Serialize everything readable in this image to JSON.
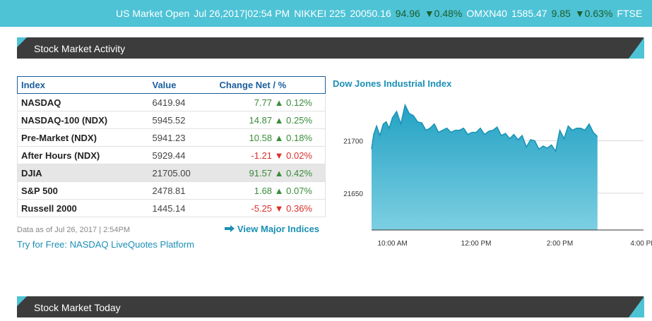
{
  "ticker": {
    "status": "US Market Open",
    "datetime": "Jul 26,2017|02:54 PM",
    "items": [
      {
        "name": "NIKKEI 225",
        "value": "20050.16",
        "change": "94.96",
        "pct": "▼0.48%"
      },
      {
        "name": "OMXN40",
        "value": "1585.47",
        "change": "9.85",
        "pct": "▼0.63%"
      },
      {
        "name": "FTSE",
        "value": "",
        "change": "",
        "pct": ""
      }
    ]
  },
  "section1": {
    "title": "Stock Market Activity"
  },
  "section2": {
    "title": "Stock Market Today"
  },
  "table": {
    "headers": [
      "Index",
      "Value",
      "Change Net / %"
    ],
    "rows": [
      {
        "index": "NASDAQ",
        "value": "6419.94",
        "change": "7.77 ▲ 0.12%",
        "dir": "up"
      },
      {
        "index": "NASDAQ-100 (NDX)",
        "value": "5945.52",
        "change": "14.87 ▲ 0.25%",
        "dir": "up"
      },
      {
        "index": "Pre-Market (NDX)",
        "value": "5941.23",
        "change": "10.58 ▲ 0.18%",
        "dir": "up"
      },
      {
        "index": "After Hours (NDX)",
        "value": "5929.44",
        "change": "-1.21 ▼ 0.02%",
        "dir": "down"
      },
      {
        "index": "DJIA",
        "value": "21705.00",
        "change": "91.57 ▲ 0.42%",
        "dir": "up"
      },
      {
        "index": "S&P 500",
        "value": "2478.81",
        "change": "1.68 ▲ 0.07%",
        "dir": "up"
      },
      {
        "index": "Russell 2000",
        "value": "1445.14",
        "change": "-5.25 ▼ 0.36%",
        "dir": "down"
      }
    ]
  },
  "footer": {
    "as_of": "Data as of Jul 26, 2017 | 2:54PM",
    "try_link": "Try for Free: NASDAQ LiveQuotes Platform",
    "view_link": "View Major Indices",
    "view_icon": "arrow-right-icon"
  },
  "colors": {
    "accent": "#4ec3d6",
    "header_bg": "#3c3c3c",
    "up": "#3a8c3a",
    "down": "#d9302c",
    "link": "#1b8fb5"
  },
  "chart_data": {
    "type": "area",
    "title": "Dow Jones Industrial Index",
    "x_ticks": [
      "10:00 AM",
      "12:00 PM",
      "2:00 PM",
      "4:00 PM"
    ],
    "y_ticks": [
      21700,
      21650
    ],
    "ylim": [
      21615,
      21740
    ],
    "x_range_hours": [
      9.5,
      16.0
    ],
    "x": [
      9.5,
      9.55,
      9.62,
      9.7,
      9.78,
      9.85,
      9.92,
      10.0,
      10.1,
      10.2,
      10.3,
      10.4,
      10.5,
      10.6,
      10.7,
      10.8,
      10.9,
      11.0,
      11.1,
      11.2,
      11.3,
      11.4,
      11.5,
      11.6,
      11.7,
      11.8,
      11.9,
      12.0,
      12.1,
      12.2,
      12.3,
      12.4,
      12.5,
      12.6,
      12.7,
      12.8,
      12.9,
      13.0,
      13.1,
      13.2,
      13.3,
      13.4,
      13.5,
      13.6,
      13.7,
      13.8,
      13.9,
      14.0,
      14.1,
      14.2,
      14.3,
      14.4,
      14.5,
      14.6,
      14.7,
      14.8,
      14.9
    ],
    "y": [
      21692,
      21706,
      21714,
      21705,
      21716,
      21718,
      21712,
      21722,
      21728,
      21716,
      21734,
      21726,
      21724,
      21718,
      21717,
      21710,
      21712,
      21716,
      21708,
      21710,
      21712,
      21708,
      21710,
      21710,
      21712,
      21706,
      21708,
      21708,
      21712,
      21706,
      21709,
      21710,
      21713,
      21705,
      21707,
      21702,
      21706,
      21701,
      21705,
      21694,
      21701,
      21700,
      21692,
      21695,
      21693,
      21696,
      21690,
      21710,
      21702,
      21714,
      21710,
      21712,
      21712,
      21710,
      21716,
      21708,
      21704
    ],
    "grid": true,
    "legend": "none"
  }
}
